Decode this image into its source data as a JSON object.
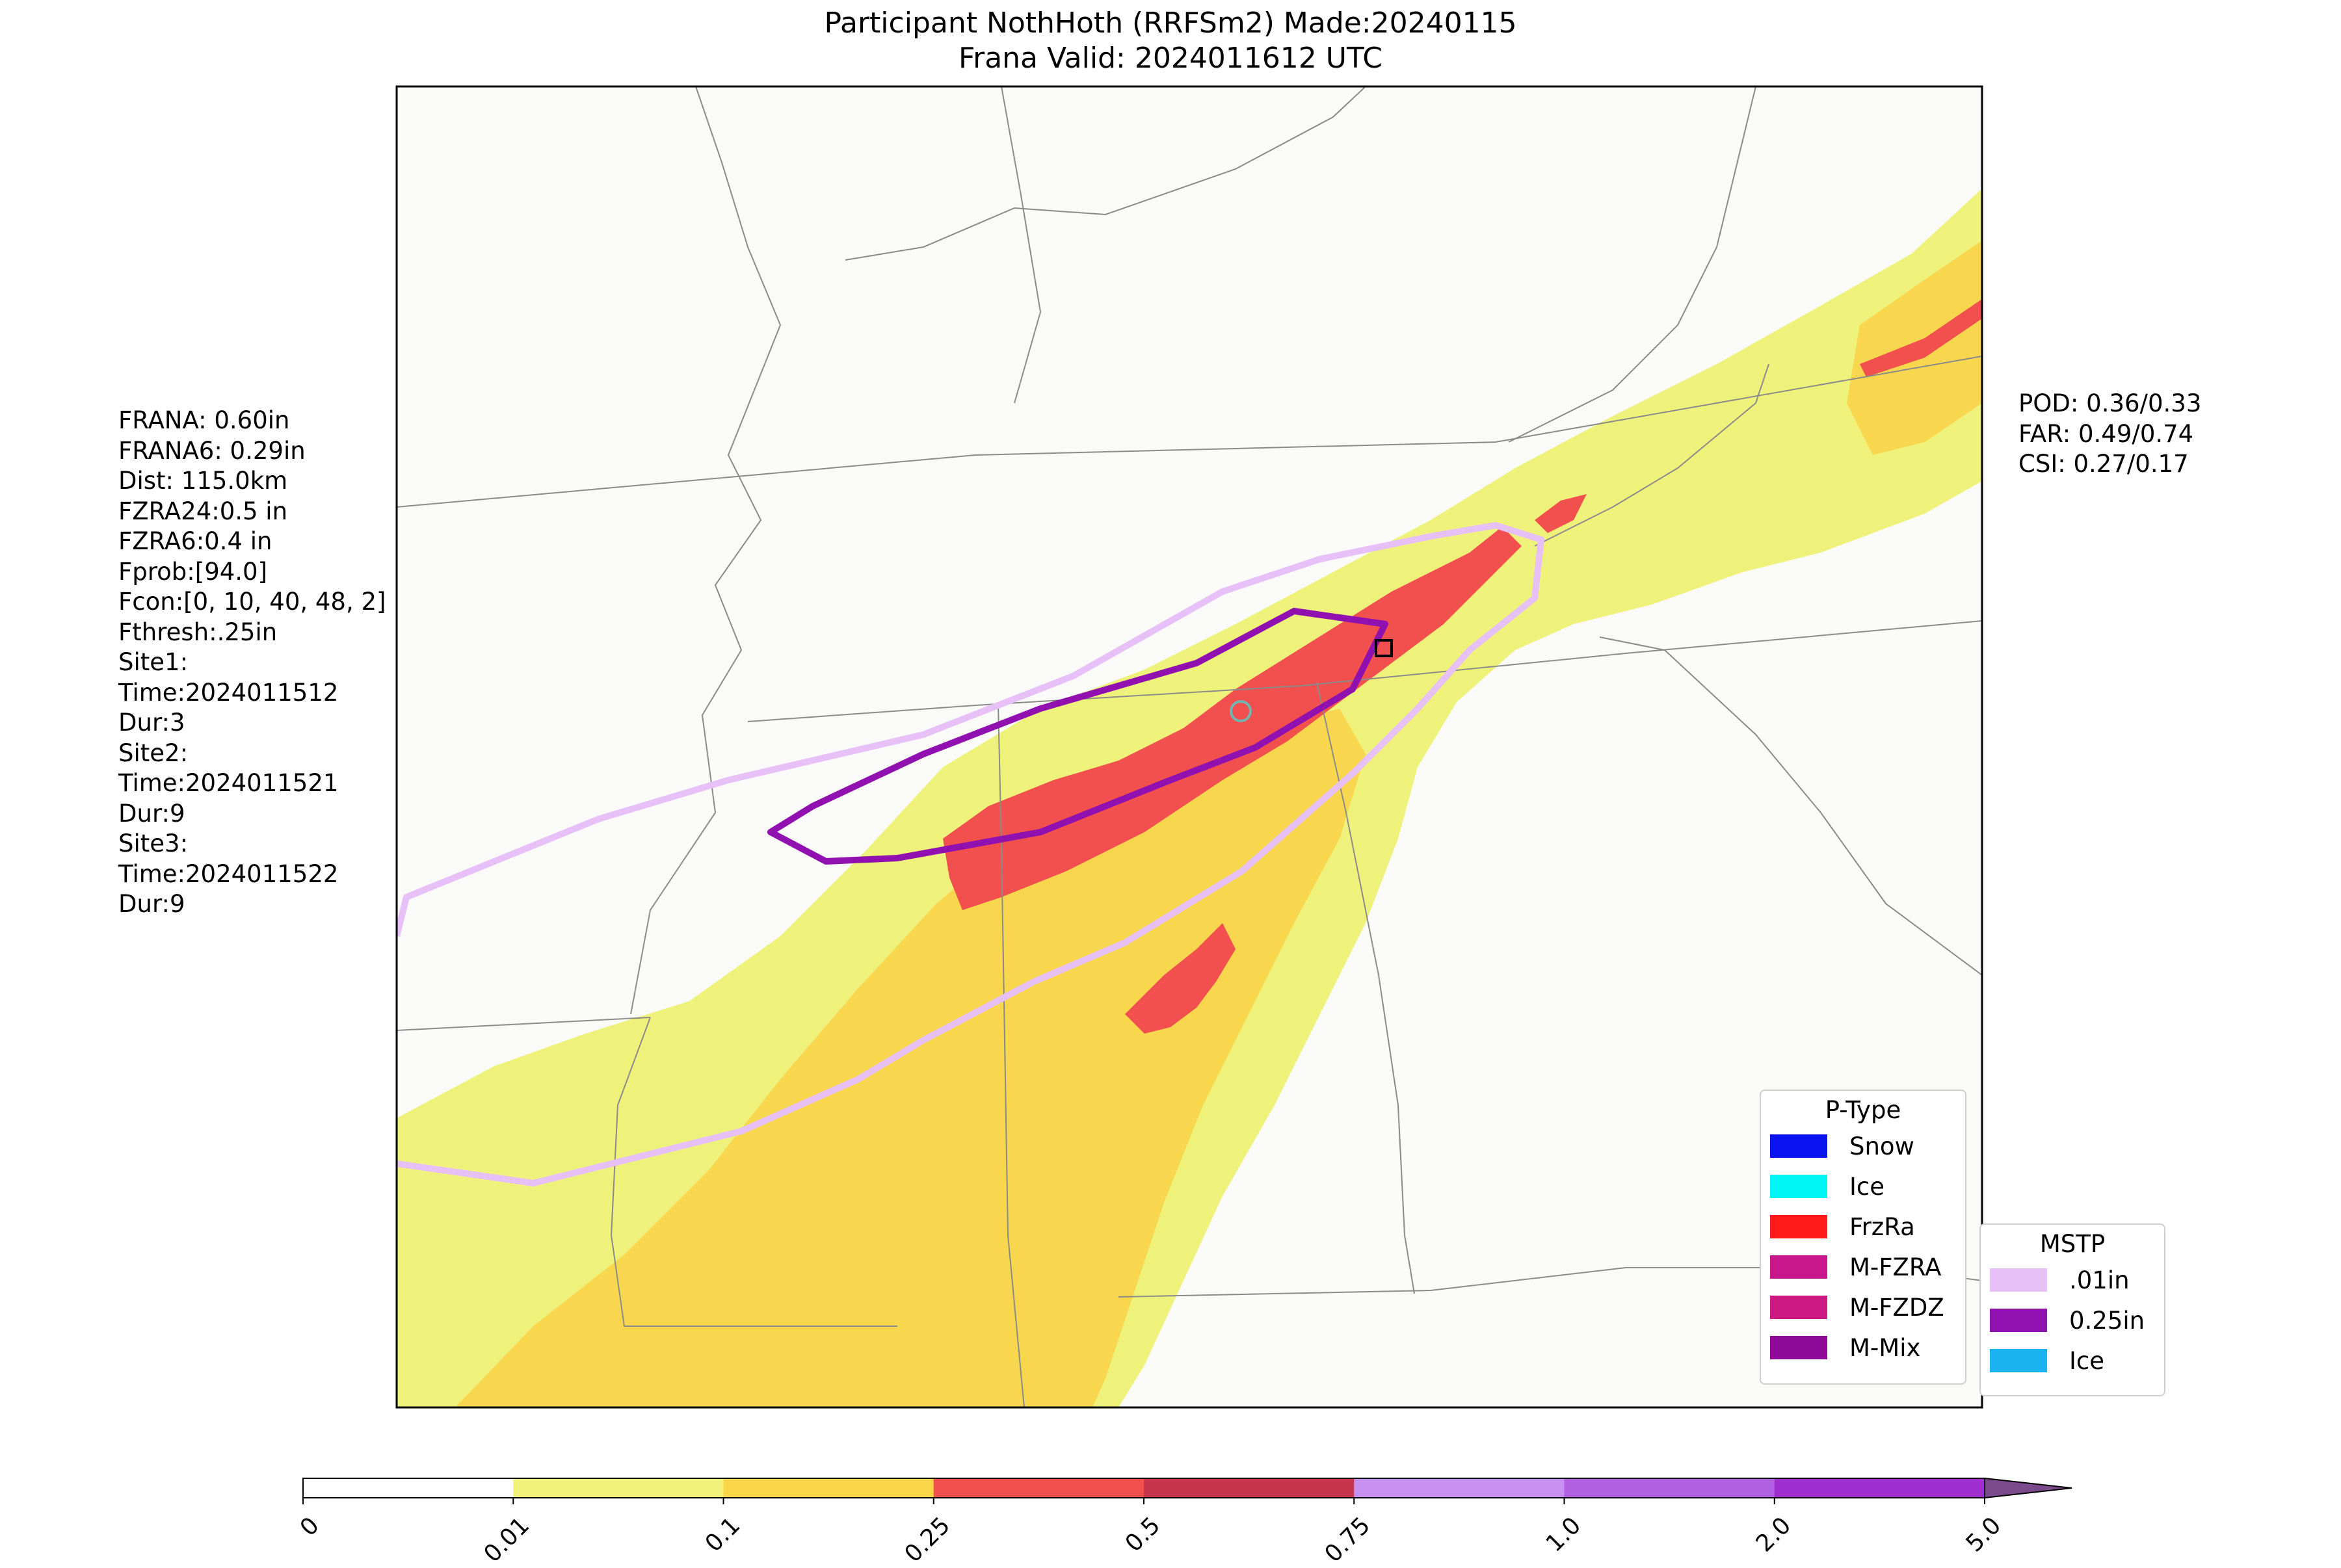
{
  "title": {
    "line1": "Participant NothHoth (RRFSm2) Made:20240115",
    "line2": "Frana Valid: 2024011612 UTC"
  },
  "left_stats": {
    "lines": [
      "FRANA: 0.60in",
      "FRANA6: 0.29in",
      "Dist: 115.0km",
      "FZRA24:0.5 in",
      "FZRA6:0.4 in",
      "Fprob:[94.0]",
      "Fcon:[0, 10, 40, 48, 2]",
      "Fthresh:.25in",
      "Site1:",
      "Time:2024011512",
      "Dur:3",
      "Site2:",
      "Time:2024011521",
      "Dur:9",
      "Site3:",
      "Time:2024011522",
      "Dur:9"
    ]
  },
  "right_stats": {
    "pod": "POD: 0.36/0.33",
    "far": "FAR: 0.49/0.74",
    "csi": "CSI: 0.27/0.17"
  },
  "ptype_legend": {
    "title": "P-Type",
    "items": [
      {
        "label": "Snow",
        "color": "#0a14f0"
      },
      {
        "label": "Ice",
        "color": "#00f5f5"
      },
      {
        "label": "FrzRa",
        "color": "#ff1a1a"
      },
      {
        "label": "M-FZRA",
        "color": "#c8178c"
      },
      {
        "label": "M-FZDZ",
        "color": "#cc1a82"
      },
      {
        "label": "M-Mix",
        "color": "#8e0a96"
      }
    ]
  },
  "mstp_legend": {
    "title": "MSTP",
    "items": [
      {
        "label": ".01in",
        "color": "#e8c0f8"
      },
      {
        "label": "0.25in",
        "color": "#9010b0"
      },
      {
        "label": "Ice",
        "color": "#1ab2f0"
      }
    ]
  },
  "colorbar": {
    "ticks": [
      "0",
      "0.01",
      "0.1",
      "0.25",
      "0.5",
      "0.75",
      "1.0",
      "2.0",
      "5.0"
    ],
    "colors": [
      "#ffffff",
      "#f2f27a",
      "#f9d547",
      "#f24f4f",
      "#c8344a",
      "#c890f0",
      "#b060e0",
      "#a12fd0",
      "#7a4a8c"
    ]
  },
  "markers": {
    "circle_color": "#6fb5b0",
    "square_color": "#000000"
  }
}
